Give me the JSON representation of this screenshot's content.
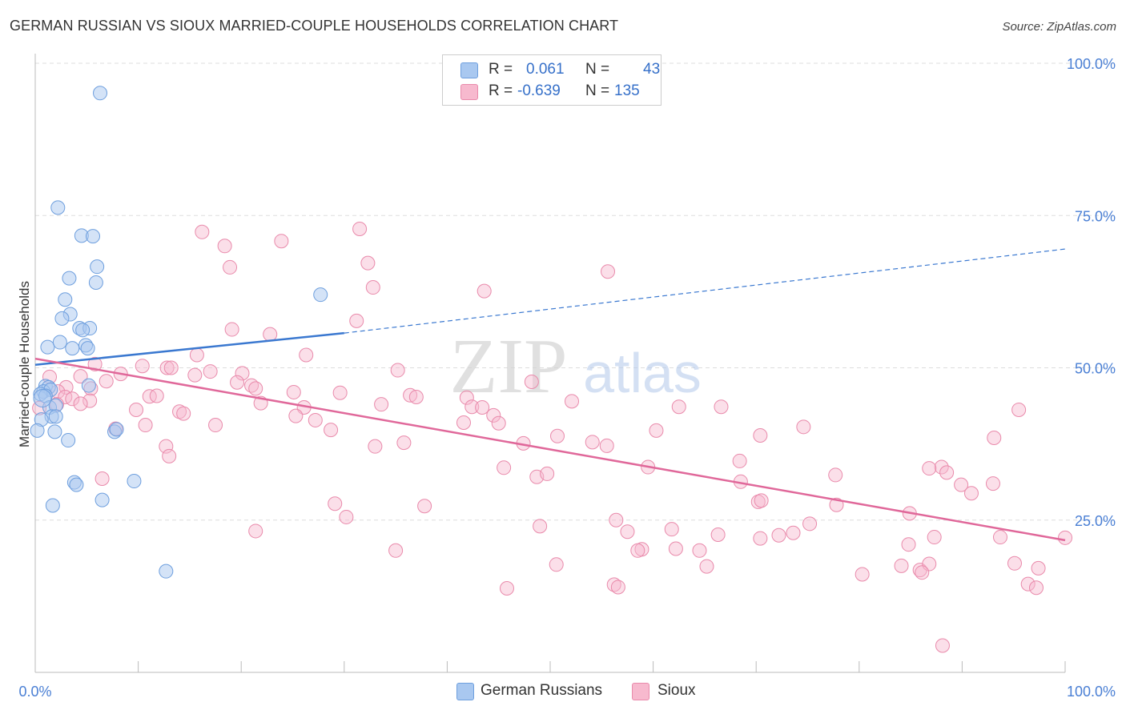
{
  "title": "GERMAN RUSSIAN VS SIOUX MARRIED-COUPLE HOUSEHOLDS CORRELATION CHART",
  "source": "Source: ZipAtlas.com",
  "watermark": {
    "zip": "ZIP",
    "atlas": "atlas"
  },
  "legend_top": {
    "rows": [
      {
        "r_label": "R =",
        "r_value": "0.061",
        "n_label": "N =",
        "n_value": "43"
      },
      {
        "r_label": "R =",
        "r_value": "-0.639",
        "n_label": "N =",
        "n_value": "135"
      }
    ]
  },
  "legend_bottom": {
    "items": [
      "German Russians",
      "Sioux"
    ]
  },
  "colors": {
    "german_fill": "#a9c8f0",
    "german_stroke": "#6e9fde",
    "german_line": "#3a78d0",
    "sioux_fill": "#f7b9ce",
    "sioux_stroke": "#e98aab",
    "sioux_line": "#e0689a",
    "tick_label": "#4a7fd4",
    "grid": "#dddddd"
  },
  "chart_data": {
    "type": "scatter",
    "title": "GERMAN RUSSIAN VS SIOUX MARRIED-COUPLE HOUSEHOLDS CORRELATION CHART",
    "xlabel": "",
    "ylabel": "Married-couple Households",
    "xlim": [
      0,
      100
    ],
    "ylim": [
      0,
      100
    ],
    "x_tick_labels": [
      "0.0%",
      "100.0%"
    ],
    "y_ticks": [
      25,
      50,
      75,
      100
    ],
    "y_tick_labels": [
      "25.0%",
      "50.0%",
      "75.0%",
      "100.0%"
    ],
    "grid": "dashed horizontal",
    "series": [
      {
        "name": "German Russians",
        "r": 0.061,
        "n": 43,
        "trend": {
          "x0": 0,
          "y0": 50.5,
          "x1": 30,
          "y1": 55.7,
          "dashed_to_x": 100,
          "dashed_to_y": 69.5
        },
        "points": [
          [
            6.3,
            95.1
          ],
          [
            2.2,
            76.3
          ],
          [
            4.5,
            71.7
          ],
          [
            5.6,
            71.6
          ],
          [
            6.0,
            66.6
          ],
          [
            5.9,
            64.0
          ],
          [
            3.3,
            64.7
          ],
          [
            2.9,
            61.2
          ],
          [
            3.4,
            58.8
          ],
          [
            2.6,
            58.1
          ],
          [
            4.3,
            56.5
          ],
          [
            5.3,
            56.5
          ],
          [
            4.6,
            56.2
          ],
          [
            1.2,
            53.4
          ],
          [
            2.4,
            54.2
          ],
          [
            3.6,
            53.2
          ],
          [
            4.9,
            53.7
          ],
          [
            5.1,
            53.2
          ],
          [
            27.7,
            62.0
          ],
          [
            1.0,
            47.0
          ],
          [
            1.3,
            46.8
          ],
          [
            0.8,
            46.1
          ],
          [
            1.5,
            46.4
          ],
          [
            0.5,
            45.7
          ],
          [
            1.0,
            45.4
          ],
          [
            5.2,
            47.1
          ],
          [
            1.4,
            43.5
          ],
          [
            2.0,
            43.8
          ],
          [
            1.6,
            42.0
          ],
          [
            2.0,
            42.0
          ],
          [
            0.6,
            41.5
          ],
          [
            1.9,
            39.5
          ],
          [
            3.2,
            38.1
          ],
          [
            7.7,
            39.5
          ],
          [
            7.9,
            39.9
          ],
          [
            0.2,
            39.7
          ],
          [
            3.8,
            31.2
          ],
          [
            4.0,
            30.8
          ],
          [
            9.6,
            31.4
          ],
          [
            6.5,
            28.3
          ],
          [
            1.7,
            27.4
          ],
          [
            12.7,
            16.6
          ],
          [
            0.7,
            45.0
          ]
        ]
      },
      {
        "name": "Sioux",
        "r": -0.639,
        "n": 135,
        "trend": {
          "x0": 0,
          "y0": 51.5,
          "x1": 100,
          "y1": 21.7
        },
        "points": [
          [
            16.2,
            72.3
          ],
          [
            18.4,
            70.0
          ],
          [
            23.9,
            70.8
          ],
          [
            31.5,
            72.8
          ],
          [
            18.9,
            66.5
          ],
          [
            32.3,
            67.2
          ],
          [
            55.6,
            65.8
          ],
          [
            32.8,
            63.2
          ],
          [
            43.6,
            62.6
          ],
          [
            31.2,
            57.7
          ],
          [
            19.1,
            56.3
          ],
          [
            22.8,
            55.5
          ],
          [
            26.3,
            52.1
          ],
          [
            15.7,
            52.1
          ],
          [
            5.8,
            50.6
          ],
          [
            10.4,
            50.3
          ],
          [
            12.8,
            50.0
          ],
          [
            8.3,
            49.0
          ],
          [
            13.2,
            50.0
          ],
          [
            17.0,
            49.4
          ],
          [
            15.5,
            48.8
          ],
          [
            20.1,
            49.1
          ],
          [
            35.2,
            49.6
          ],
          [
            1.4,
            48.5
          ],
          [
            4.4,
            48.6
          ],
          [
            6.9,
            47.8
          ],
          [
            48.2,
            47.7
          ],
          [
            19.6,
            47.6
          ],
          [
            21.0,
            47.1
          ],
          [
            3.0,
            46.8
          ],
          [
            5.4,
            46.6
          ],
          [
            2.2,
            46.1
          ],
          [
            21.4,
            46.6
          ],
          [
            25.1,
            46.0
          ],
          [
            29.6,
            45.9
          ],
          [
            2.9,
            45.2
          ],
          [
            11.1,
            45.3
          ],
          [
            11.8,
            45.4
          ],
          [
            36.4,
            45.5
          ],
          [
            37.0,
            45.2
          ],
          [
            41.9,
            45.1
          ],
          [
            3.6,
            44.9
          ],
          [
            5.3,
            44.6
          ],
          [
            4.4,
            44.1
          ],
          [
            2.1,
            44.0
          ],
          [
            21.9,
            44.2
          ],
          [
            26.1,
            43.5
          ],
          [
            33.6,
            44.0
          ],
          [
            42.4,
            43.6
          ],
          [
            43.4,
            43.5
          ],
          [
            52.1,
            44.5
          ],
          [
            62.5,
            43.6
          ],
          [
            66.6,
            43.6
          ],
          [
            95.5,
            43.1
          ],
          [
            9.8,
            43.1
          ],
          [
            14.0,
            42.8
          ],
          [
            14.4,
            42.5
          ],
          [
            25.3,
            42.1
          ],
          [
            44.5,
            42.2
          ],
          [
            27.2,
            41.4
          ],
          [
            41.6,
            41.0
          ],
          [
            45.0,
            40.9
          ],
          [
            17.5,
            40.6
          ],
          [
            10.7,
            40.6
          ],
          [
            7.8,
            40.0
          ],
          [
            60.3,
            39.7
          ],
          [
            74.6,
            40.3
          ],
          [
            28.7,
            39.8
          ],
          [
            50.7,
            38.8
          ],
          [
            70.4,
            38.9
          ],
          [
            93.1,
            38.5
          ],
          [
            35.8,
            37.7
          ],
          [
            12.7,
            37.1
          ],
          [
            47.4,
            37.6
          ],
          [
            54.1,
            37.8
          ],
          [
            55.5,
            37.2
          ],
          [
            33.0,
            37.1
          ],
          [
            45.5,
            33.6
          ],
          [
            13.0,
            35.5
          ],
          [
            68.4,
            34.7
          ],
          [
            59.5,
            33.7
          ],
          [
            88.0,
            33.7
          ],
          [
            86.8,
            33.5
          ],
          [
            88.5,
            32.8
          ],
          [
            6.5,
            31.8
          ],
          [
            48.7,
            32.1
          ],
          [
            49.7,
            32.6
          ],
          [
            77.7,
            32.4
          ],
          [
            68.5,
            31.3
          ],
          [
            89.9,
            30.8
          ],
          [
            93.0,
            31.0
          ],
          [
            90.9,
            29.4
          ],
          [
            29.1,
            27.7
          ],
          [
            37.8,
            27.3
          ],
          [
            77.8,
            27.5
          ],
          [
            70.2,
            28.0
          ],
          [
            70.5,
            28.2
          ],
          [
            84.9,
            26.1
          ],
          [
            30.2,
            25.5
          ],
          [
            56.4,
            25.0
          ],
          [
            21.4,
            23.2
          ],
          [
            57.5,
            23.1
          ],
          [
            49.0,
            24.0
          ],
          [
            61.8,
            23.5
          ],
          [
            75.2,
            24.4
          ],
          [
            73.6,
            22.9
          ],
          [
            66.3,
            22.6
          ],
          [
            72.2,
            22.5
          ],
          [
            87.3,
            22.2
          ],
          [
            93.7,
            22.2
          ],
          [
            100.0,
            22.1
          ],
          [
            70.4,
            22.0
          ],
          [
            84.8,
            21.0
          ],
          [
            62.2,
            20.3
          ],
          [
            58.9,
            20.2
          ],
          [
            64.5,
            20.0
          ],
          [
            65.2,
            17.4
          ],
          [
            58.5,
            20.0
          ],
          [
            35.0,
            20.0
          ],
          [
            50.6,
            17.7
          ],
          [
            84.1,
            17.5
          ],
          [
            80.3,
            16.1
          ],
          [
            85.9,
            16.8
          ],
          [
            86.8,
            17.8
          ],
          [
            86.1,
            16.4
          ],
          [
            95.1,
            17.9
          ],
          [
            97.4,
            17.1
          ],
          [
            96.4,
            14.5
          ],
          [
            97.2,
            13.9
          ],
          [
            56.2,
            14.4
          ],
          [
            45.8,
            13.8
          ],
          [
            56.6,
            14.0
          ],
          [
            88.1,
            4.4
          ],
          [
            0.4,
            43.4
          ]
        ]
      }
    ]
  }
}
